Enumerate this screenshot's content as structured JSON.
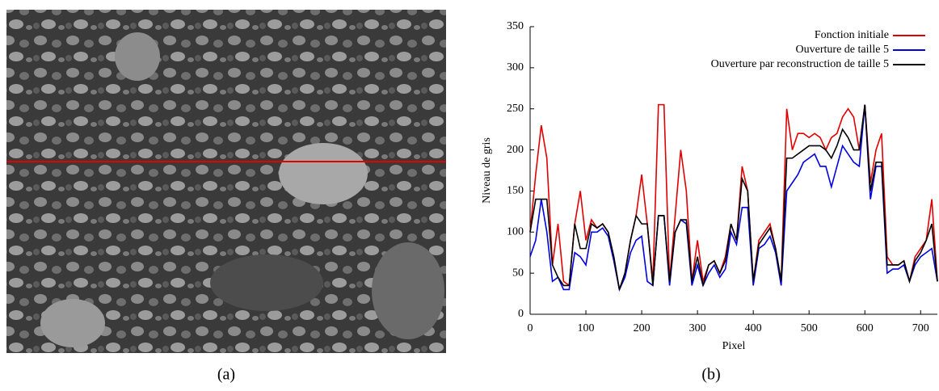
{
  "figure_captions": [
    "(a)",
    "(b)"
  ],
  "chart_data": {
    "type": "line",
    "x_label": "Pixel",
    "y_label": "Niveau de gris",
    "x": [
      0,
      10,
      20,
      30,
      40,
      50,
      60,
      70,
      80,
      90,
      100,
      110,
      120,
      130,
      140,
      150,
      160,
      170,
      180,
      190,
      200,
      210,
      220,
      230,
      240,
      250,
      260,
      270,
      280,
      290,
      300,
      310,
      320,
      330,
      340,
      350,
      360,
      370,
      380,
      390,
      400,
      410,
      420,
      430,
      440,
      450,
      460,
      470,
      480,
      490,
      500,
      510,
      520,
      530,
      540,
      550,
      560,
      570,
      580,
      590,
      600,
      610,
      620,
      630,
      640,
      650,
      660,
      670,
      680,
      690,
      700,
      710,
      720,
      730
    ],
    "series": [
      {
        "name": "Fonction initiale",
        "color": "#e00000",
        "values": [
          100,
          170,
          230,
          190,
          60,
          110,
          40,
          35,
          110,
          150,
          90,
          115,
          105,
          110,
          100,
          70,
          30,
          50,
          90,
          120,
          170,
          110,
          40,
          255,
          255,
          40,
          120,
          200,
          150,
          40,
          90,
          40,
          60,
          65,
          50,
          70,
          110,
          90,
          180,
          150,
          40,
          90,
          100,
          110,
          80,
          40,
          250,
          200,
          220,
          220,
          215,
          220,
          215,
          200,
          215,
          220,
          240,
          250,
          240,
          200,
          255,
          160,
          200,
          220,
          70,
          60,
          60,
          65,
          40,
          70,
          80,
          90,
          140,
          40
        ]
      },
      {
        "name": "Ouverture de taille 5",
        "color": "#0000e0",
        "values": [
          70,
          90,
          140,
          100,
          40,
          45,
          30,
          30,
          75,
          70,
          60,
          100,
          100,
          105,
          95,
          65,
          30,
          45,
          75,
          90,
          95,
          40,
          35,
          120,
          120,
          35,
          100,
          115,
          110,
          35,
          60,
          35,
          50,
          60,
          45,
          55,
          100,
          85,
          130,
          130,
          35,
          80,
          85,
          95,
          75,
          35,
          150,
          160,
          170,
          185,
          190,
          195,
          180,
          180,
          155,
          180,
          205,
          195,
          185,
          180,
          255,
          140,
          180,
          180,
          50,
          55,
          55,
          60,
          40,
          60,
          70,
          75,
          80,
          40
        ]
      },
      {
        "name": "Ouverture par reconstruction de taille 5",
        "color": "#000000",
        "values": [
          100,
          140,
          140,
          140,
          60,
          45,
          35,
          35,
          110,
          80,
          80,
          110,
          105,
          110,
          100,
          70,
          30,
          50,
          90,
          120,
          110,
          110,
          35,
          120,
          120,
          40,
          100,
          115,
          115,
          40,
          70,
          35,
          60,
          65,
          50,
          65,
          110,
          90,
          165,
          150,
          40,
          85,
          95,
          105,
          80,
          40,
          190,
          190,
          195,
          200,
          205,
          205,
          205,
          200,
          190,
          205,
          225,
          215,
          200,
          200,
          255,
          150,
          185,
          185,
          60,
          60,
          60,
          65,
          40,
          65,
          75,
          90,
          110,
          40
        ]
      }
    ],
    "xlim": [
      0,
      730
    ],
    "ylim": [
      0,
      350
    ],
    "xticks": [
      0,
      100,
      200,
      300,
      400,
      500,
      600,
      700
    ],
    "yticks": [
      0,
      50,
      100,
      150,
      200,
      250,
      300,
      350
    ],
    "legend": "top-right"
  }
}
